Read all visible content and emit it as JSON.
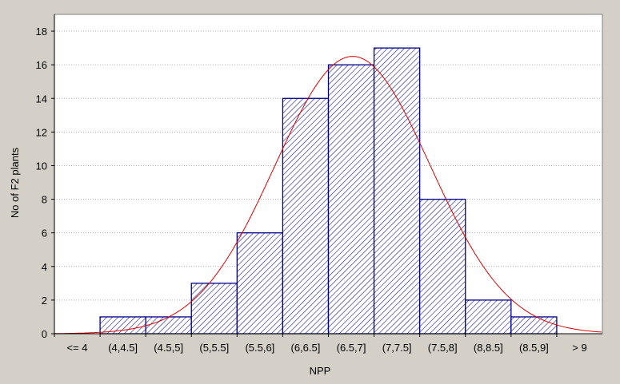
{
  "chart_data": {
    "type": "bar",
    "subtype": "histogram",
    "title": "",
    "xlabel": "NPP",
    "ylabel": "No of F2 plants",
    "categories": [
      "<= 4",
      "(4,4.5]",
      "(4.5,5]",
      "(5,5.5]",
      "(5.5,6]",
      "(6,6.5]",
      "(6.5,7]",
      "(7,7.5]",
      "(7.5,8]",
      "(8,8.5]",
      "(8.5,9]",
      "> 9"
    ],
    "values": [
      0,
      1,
      1,
      3,
      6,
      14,
      16,
      17,
      8,
      2,
      1,
      0
    ],
    "ylim": [
      0,
      19
    ],
    "yticks": [
      0,
      2,
      4,
      6,
      8,
      10,
      12,
      14,
      16,
      18
    ],
    "grid": "horizontal dotted",
    "fit_curve": {
      "type": "normal",
      "peak_value": 16.5,
      "peak_position_category_index": 6.53,
      "sd_in_categories": 1.7
    },
    "colors": {
      "background": "#d4d0c8",
      "plot_area": "#ffffff",
      "bar_stroke": "#00008b",
      "bar_hatch": "#1a1a8c",
      "curve": "#e00000"
    }
  }
}
